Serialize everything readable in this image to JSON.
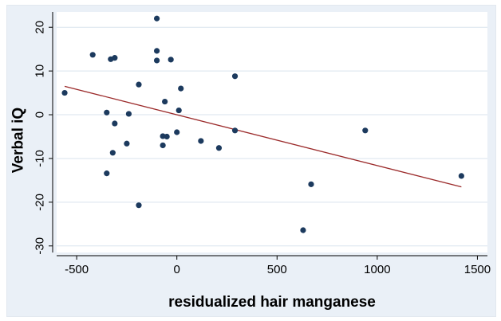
{
  "chart_data": {
    "type": "scatter",
    "title": "",
    "xlabel": "residualized hair manganese",
    "ylabel": "Verbal iQ",
    "xlim": [
      -600,
      1550
    ],
    "ylim": [
      -31.5,
      23.5
    ],
    "xticks": [
      -500,
      0,
      500,
      1000,
      1500
    ],
    "yticks": [
      -30,
      -20,
      -10,
      0,
      10,
      20
    ],
    "xtick_labels": [
      "-500",
      "0",
      "500",
      "1000",
      "1500"
    ],
    "ytick_labels": [
      "-30",
      "-20",
      "-10",
      "0",
      "10",
      "20"
    ],
    "grid": "horizontal",
    "legend": "none",
    "colors": {
      "background": "#eaf0f7",
      "plot_area": "#ffffff",
      "points": "#1c3a5e",
      "fit_line": "#9b2a2a",
      "grid": "#d9e3ee"
    },
    "series": [
      {
        "marker": "circle",
        "x": [
          -560,
          -420,
          -330,
          -310,
          -350,
          -310,
          -320,
          -350,
          -240,
          -250,
          -190,
          -190,
          -100,
          -100,
          -100,
          -30,
          -60,
          -50,
          -70,
          -70,
          0,
          10,
          20,
          120,
          210,
          290,
          290,
          630,
          670,
          940,
          1420
        ],
        "y": [
          5,
          13.7,
          12.7,
          13,
          0.5,
          -2,
          -8.7,
          -13.4,
          0.2,
          -6.6,
          6.9,
          -20.7,
          22,
          14.6,
          12.4,
          12.6,
          3,
          -5,
          -7,
          -4.9,
          -4,
          1,
          6,
          -6,
          -7.6,
          8.8,
          -3.6,
          -26.4,
          -15.9,
          -3.6,
          -14
        ]
      }
    ],
    "fit_line": {
      "x": [
        -560,
        1420
      ],
      "y": [
        6.5,
        -16.5
      ]
    }
  }
}
